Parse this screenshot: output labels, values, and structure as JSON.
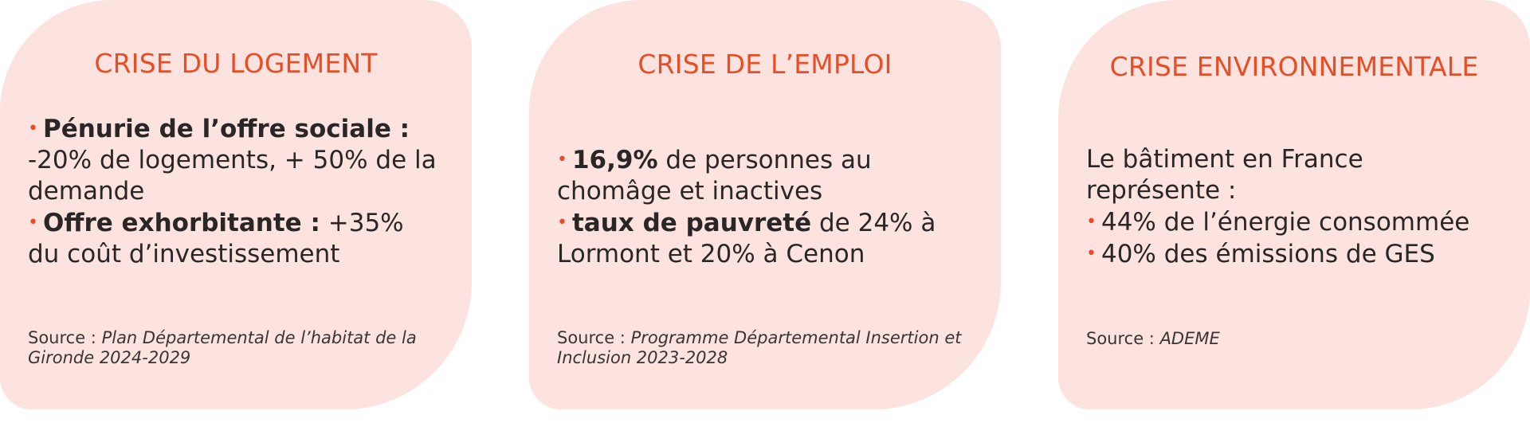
{
  "cards": [
    {
      "title": "CRISE DU LOGEMENT",
      "lines": [
        {
          "bold": "Pénurie de l’offre sociale :",
          "text": ""
        },
        {
          "bold": "",
          "text": "-20% de logements, + 50% de la demande"
        },
        {
          "bold": "Offre exhorbitante :",
          "text": " +35% du coût d’investissement"
        }
      ],
      "source_label": "Source :",
      "source_text": " Plan Départemental de l’habitat de la Gironde 2024-2029"
    },
    {
      "title": "CRISE DE L’EMPLOI",
      "lines": [
        {
          "bold": "16,9%",
          "text": " de personnes au chomâge et inactives"
        },
        {
          "bold": "taux de pauvreté",
          "text": " de 24% à Lormont et 20% à Cenon"
        }
      ],
      "source_label": "Source :",
      "source_text": " Programme Départemental Insertion et Inclusion 2023-2028"
    },
    {
      "title": "CRISE ENVIRONNEMENTALE",
      "intro": "Le bâtiment en France représente :",
      "lines": [
        {
          "bold": "",
          "text": "44% de l’énergie consommée"
        },
        {
          "bold": "",
          "text": "40% des émissions de GES"
        }
      ],
      "source_label": "Source :",
      "source_text": " ADEME"
    }
  ],
  "colors": {
    "card_bg": "#fce3df",
    "accent": "#e84e26",
    "text": "#2a2626"
  },
  "bullet_glyph": "•"
}
